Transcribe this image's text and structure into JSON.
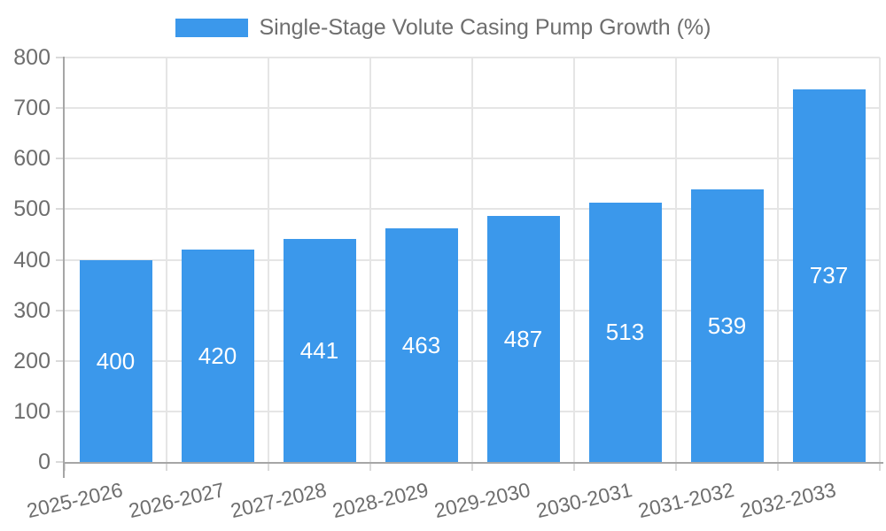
{
  "legend": {
    "position": "top",
    "label": "Single-Stage Volute Casing Pump Growth (%)"
  },
  "chart_data": {
    "type": "bar",
    "title": "Single-Stage Volute Casing Pump Growth (%)",
    "xlabel": "",
    "ylabel": "",
    "categories": [
      "2025-2026",
      "2026-2027",
      "2027-2028",
      "2028-2029",
      "2029-2030",
      "2030-2031",
      "2031-2032",
      "2032-2033"
    ],
    "values": [
      400,
      420,
      441,
      463,
      487,
      513,
      539,
      737
    ],
    "bar_value_labels": [
      "400",
      "420",
      "441",
      "463",
      "487",
      "513",
      "539",
      "737"
    ],
    "ylim": [
      0,
      800
    ],
    "ytick_step": 100,
    "yticks": [
      0,
      100,
      200,
      300,
      400,
      500,
      600,
      700,
      800
    ],
    "grid": true,
    "legend_position": "top",
    "colors": {
      "bar": "#3B98EB",
      "bar_label": "#FFFFFF",
      "text": "#6E6E6E",
      "grid": "#E5E5E5",
      "axis": "#A6A6A6",
      "tickmark": "#DADADA",
      "background": "#FFFFFF"
    }
  }
}
